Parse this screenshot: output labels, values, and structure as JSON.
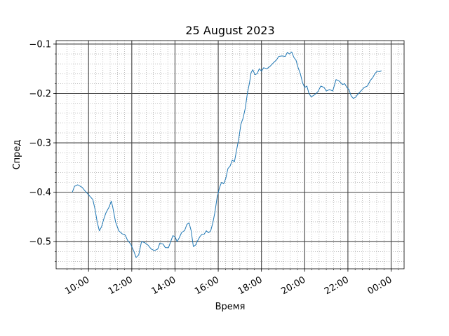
{
  "chart_data": {
    "type": "line",
    "title": "25 August 2023",
    "xlabel": "Время",
    "ylabel": "Спред",
    "x_tick_labels": [
      "10:00",
      "12:00",
      "14:00",
      "16:00",
      "18:00",
      "20:00",
      "22:00",
      "00:00"
    ],
    "y_tick_labels": [
      "−0.5",
      "−0.4",
      "−0.3",
      "−0.2",
      "−0.1"
    ],
    "y_ticks": [
      -0.5,
      -0.4,
      -0.3,
      -0.2,
      -0.1
    ],
    "xlim_hours": [
      8.5,
      24.6
    ],
    "ylim": [
      -0.555,
      -0.093
    ],
    "grid": {
      "major": true,
      "minor": true
    },
    "line_color": "#1f77b4",
    "series": [
      {
        "points": [
          [
            9.25,
            -0.4
          ],
          [
            9.35,
            -0.388
          ],
          [
            9.5,
            -0.385
          ],
          [
            9.7,
            -0.39
          ],
          [
            9.85,
            -0.398
          ],
          [
            10.0,
            -0.405
          ],
          [
            10.1,
            -0.41
          ],
          [
            10.2,
            -0.415
          ],
          [
            10.3,
            -0.435
          ],
          [
            10.4,
            -0.46
          ],
          [
            10.5,
            -0.478
          ],
          [
            10.6,
            -0.47
          ],
          [
            10.7,
            -0.455
          ],
          [
            10.8,
            -0.442
          ],
          [
            10.95,
            -0.43
          ],
          [
            11.05,
            -0.418
          ],
          [
            11.12,
            -0.43
          ],
          [
            11.25,
            -0.46
          ],
          [
            11.4,
            -0.478
          ],
          [
            11.55,
            -0.484
          ],
          [
            11.7,
            -0.487
          ],
          [
            11.8,
            -0.497
          ],
          [
            11.95,
            -0.505
          ],
          [
            12.1,
            -0.52
          ],
          [
            12.2,
            -0.532
          ],
          [
            12.32,
            -0.527
          ],
          [
            12.45,
            -0.5
          ],
          [
            12.6,
            -0.502
          ],
          [
            12.75,
            -0.507
          ],
          [
            12.9,
            -0.515
          ],
          [
            13.05,
            -0.518
          ],
          [
            13.2,
            -0.515
          ],
          [
            13.3,
            -0.503
          ],
          [
            13.45,
            -0.505
          ],
          [
            13.55,
            -0.512
          ],
          [
            13.7,
            -0.512
          ],
          [
            13.8,
            -0.5
          ],
          [
            13.9,
            -0.488
          ],
          [
            14.0,
            -0.49
          ],
          [
            14.1,
            -0.5
          ],
          [
            14.2,
            -0.492
          ],
          [
            14.3,
            -0.482
          ],
          [
            14.45,
            -0.477
          ],
          [
            14.55,
            -0.465
          ],
          [
            14.65,
            -0.462
          ],
          [
            14.75,
            -0.478
          ],
          [
            14.85,
            -0.51
          ],
          [
            14.95,
            -0.507
          ],
          [
            15.05,
            -0.498
          ],
          [
            15.15,
            -0.49
          ],
          [
            15.25,
            -0.485
          ],
          [
            15.35,
            -0.485
          ],
          [
            15.45,
            -0.478
          ],
          [
            15.55,
            -0.482
          ],
          [
            15.65,
            -0.478
          ],
          [
            15.75,
            -0.462
          ],
          [
            15.85,
            -0.44
          ],
          [
            15.95,
            -0.41
          ],
          [
            16.05,
            -0.392
          ],
          [
            16.15,
            -0.38
          ],
          [
            16.25,
            -0.383
          ],
          [
            16.35,
            -0.372
          ],
          [
            16.45,
            -0.352
          ],
          [
            16.55,
            -0.347
          ],
          [
            16.65,
            -0.335
          ],
          [
            16.75,
            -0.338
          ],
          [
            16.85,
            -0.315
          ],
          [
            16.95,
            -0.292
          ],
          [
            17.05,
            -0.262
          ],
          [
            17.15,
            -0.25
          ],
          [
            17.25,
            -0.23
          ],
          [
            17.35,
            -0.2
          ],
          [
            17.45,
            -0.178
          ],
          [
            17.52,
            -0.158
          ],
          [
            17.6,
            -0.152
          ],
          [
            17.7,
            -0.162
          ],
          [
            17.8,
            -0.16
          ],
          [
            17.9,
            -0.15
          ],
          [
            18.0,
            -0.155
          ],
          [
            18.1,
            -0.148
          ],
          [
            18.25,
            -0.15
          ],
          [
            18.4,
            -0.145
          ],
          [
            18.55,
            -0.138
          ],
          [
            18.7,
            -0.132
          ],
          [
            18.8,
            -0.125
          ],
          [
            18.95,
            -0.124
          ],
          [
            19.1,
            -0.125
          ],
          [
            19.2,
            -0.117
          ],
          [
            19.3,
            -0.12
          ],
          [
            19.4,
            -0.116
          ],
          [
            19.5,
            -0.127
          ],
          [
            19.6,
            -0.133
          ],
          [
            19.7,
            -0.148
          ],
          [
            19.8,
            -0.16
          ],
          [
            19.9,
            -0.178
          ],
          [
            20.0,
            -0.188
          ],
          [
            20.1,
            -0.185
          ],
          [
            20.2,
            -0.2
          ],
          [
            20.3,
            -0.207
          ],
          [
            20.45,
            -0.203
          ],
          [
            20.6,
            -0.197
          ],
          [
            20.75,
            -0.185
          ],
          [
            20.9,
            -0.188
          ],
          [
            21.0,
            -0.195
          ],
          [
            21.15,
            -0.192
          ],
          [
            21.3,
            -0.195
          ],
          [
            21.45,
            -0.172
          ],
          [
            21.6,
            -0.175
          ],
          [
            21.75,
            -0.182
          ],
          [
            21.85,
            -0.18
          ],
          [
            21.95,
            -0.188
          ],
          [
            22.05,
            -0.192
          ],
          [
            22.15,
            -0.205
          ],
          [
            22.25,
            -0.21
          ],
          [
            22.35,
            -0.208
          ],
          [
            22.45,
            -0.202
          ],
          [
            22.6,
            -0.195
          ],
          [
            22.75,
            -0.188
          ],
          [
            22.9,
            -0.185
          ],
          [
            23.05,
            -0.173
          ],
          [
            23.15,
            -0.168
          ],
          [
            23.25,
            -0.16
          ],
          [
            23.35,
            -0.155
          ],
          [
            23.45,
            -0.156
          ],
          [
            23.55,
            -0.154
          ]
        ]
      }
    ]
  }
}
